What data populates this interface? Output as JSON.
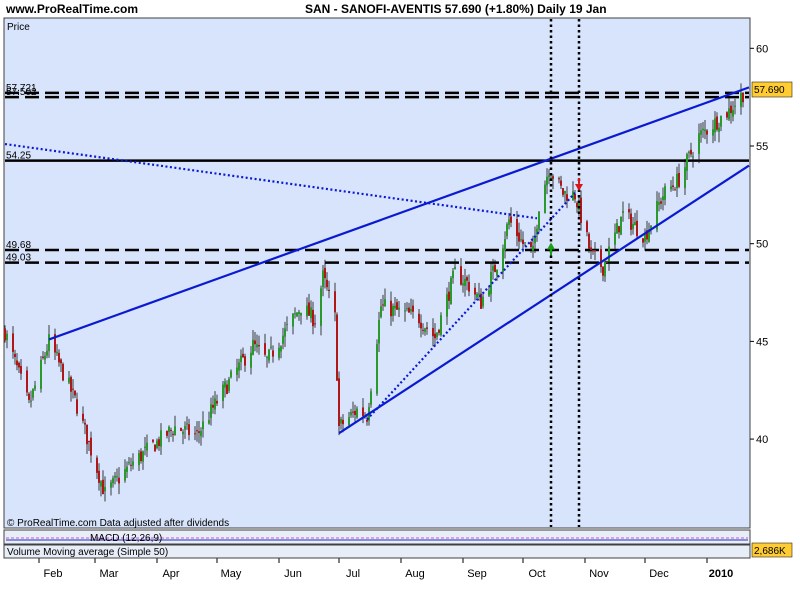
{
  "header": {
    "site": "www.ProRealTime.com",
    "title": "SAN - SANOFI-AVENTIS    57.690 (+1.80%)    Daily  19 Jan"
  },
  "panel": {
    "price_label": "Price",
    "footer": "© ProRealTime.com  Data adjusted after dividends",
    "last_price_badge": "57.690",
    "volume_label": "Volume Moving average (Simple 50)",
    "volume_value": "2,686K",
    "indicator_label": "MACD (12,26,9)"
  },
  "colors": {
    "plot_bg": "#d8e4fb",
    "trend_blue": "#0a1ad2",
    "candle_up": "#2a9a2a",
    "candle_down": "#b01818",
    "badge_bg": "#ffcc33"
  },
  "chart_data": {
    "type": "candlestick",
    "title": "SAN - SANOFI-AVENTIS 57.690 (+1.80%) Daily 19 Jan",
    "ylabel": "Price",
    "ylim": [
      35.5,
      61.5
    ],
    "yticks": [
      40,
      45,
      50,
      55,
      60
    ],
    "xticks": [
      {
        "label": "Feb",
        "date": "2009-02-01"
      },
      {
        "label": "Mar",
        "date": "2009-03-01"
      },
      {
        "label": "Apr",
        "date": "2009-04-01"
      },
      {
        "label": "May",
        "date": "2009-05-01"
      },
      {
        "label": "Jun",
        "date": "2009-06-01"
      },
      {
        "label": "Jul",
        "date": "2009-07-01"
      },
      {
        "label": "Aug",
        "date": "2009-08-01"
      },
      {
        "label": "Sep",
        "date": "2009-09-01"
      },
      {
        "label": "Oct",
        "date": "2009-10-01"
      },
      {
        "label": "Nov",
        "date": "2009-11-01"
      },
      {
        "label": "Dec",
        "date": "2009-12-01"
      },
      {
        "label": "2010",
        "date": "2010-01-01"
      }
    ],
    "xrange": [
      "2009-01-15",
      "2010-01-22"
    ],
    "anchors": [
      [
        "2009-01-15",
        45.5
      ],
      [
        "2009-01-27",
        41.7
      ],
      [
        "2009-02-06",
        45.0
      ],
      [
        "2009-02-19",
        42.0
      ],
      [
        "2009-03-06",
        37.2
      ],
      [
        "2009-03-20",
        38.8
      ],
      [
        "2009-04-10",
        40.6
      ],
      [
        "2009-04-21",
        40.2
      ],
      [
        "2009-05-05",
        42.6
      ],
      [
        "2009-05-19",
        44.8
      ],
      [
        "2009-05-26",
        44.0
      ],
      [
        "2009-06-12",
        46.8
      ],
      [
        "2009-06-19",
        46.1
      ],
      [
        "2009-06-23",
        48.3
      ],
      [
        "2009-06-29",
        46.2
      ],
      [
        "2009-07-01",
        40.6
      ],
      [
        "2009-07-10",
        41.5
      ],
      [
        "2009-07-15",
        41.2
      ],
      [
        "2009-07-22",
        46.8
      ],
      [
        "2009-08-10",
        46.2
      ],
      [
        "2009-08-18",
        45.2
      ],
      [
        "2009-08-28",
        48.5
      ],
      [
        "2009-09-03",
        48.0
      ],
      [
        "2009-09-10",
        47.0
      ],
      [
        "2009-09-18",
        49.0
      ],
      [
        "2009-09-24",
        51.2
      ],
      [
        "2009-10-01",
        50.0
      ],
      [
        "2009-10-06",
        49.5
      ],
      [
        "2009-10-09",
        52.0
      ],
      [
        "2009-10-14",
        53.9
      ],
      [
        "2009-10-21",
        52.6
      ],
      [
        "2009-10-27",
        52.5
      ],
      [
        "2009-10-30",
        51.4
      ],
      [
        "2009-11-04",
        49.4
      ],
      [
        "2009-11-10",
        48.8
      ],
      [
        "2009-11-20",
        51.5
      ],
      [
        "2009-12-01",
        50.4
      ],
      [
        "2009-12-10",
        52.5
      ],
      [
        "2009-12-18",
        53.3
      ],
      [
        "2009-12-28",
        55.5
      ],
      [
        "2010-01-05",
        56.2
      ],
      [
        "2010-01-12",
        56.8
      ],
      [
        "2010-01-19",
        57.69
      ]
    ],
    "horizontal_levels": [
      {
        "value": 57.721,
        "label": "57.721",
        "style": "dashed",
        "color": "#000000"
      },
      {
        "value": 57.502,
        "label": "57.502",
        "style": "dashed",
        "color": "#000000"
      },
      {
        "value": 54.25,
        "label": "54.25",
        "style": "solid",
        "color": "#000000"
      },
      {
        "value": 49.68,
        "label": "49.68",
        "style": "dashed",
        "color": "#000000"
      },
      {
        "value": 49.03,
        "label": "49.03",
        "style": "dashed",
        "color": "#000000"
      }
    ],
    "vertical_markers": [
      {
        "date": "2009-10-15",
        "style": "dotted"
      },
      {
        "date": "2009-10-29",
        "style": "dotted"
      }
    ],
    "trendlines": [
      {
        "from": [
          "2009-01-15",
          55.1
        ],
        "to": [
          "2009-10-08",
          51.3
        ],
        "style": "dotted"
      },
      {
        "from": [
          "2009-02-06",
          45.1
        ],
        "to": [
          "2010-01-22",
          58.0
        ],
        "style": "solid"
      },
      {
        "from": [
          "2009-07-01",
          40.3
        ],
        "to": [
          "2010-01-22",
          54.0
        ],
        "style": "solid"
      },
      {
        "from": [
          "2009-07-15",
          41.0
        ],
        "to": [
          "2009-10-27",
          52.6
        ],
        "style": "dotted"
      }
    ],
    "signals": [
      {
        "type": "buy",
        "date": "2009-10-15",
        "price": 49.7,
        "color": "#18a018"
      },
      {
        "type": "sell",
        "date": "2009-10-29",
        "price": 52.7,
        "color": "#d81818"
      }
    ],
    "last_value": 57.69
  }
}
